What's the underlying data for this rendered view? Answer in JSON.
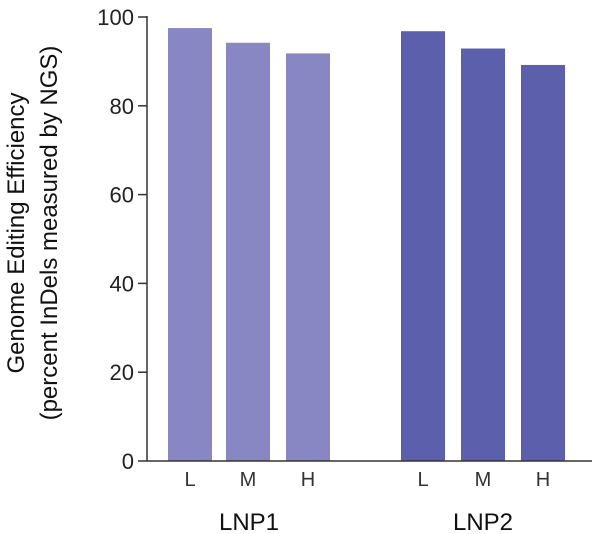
{
  "chart_data": {
    "type": "bar",
    "title": "",
    "ylabel_line1": "Genome Editing Efficiency",
    "ylabel_line2": "(percent InDels measured by NGS)",
    "ylim": [
      0,
      100
    ],
    "yticks": [
      0,
      20,
      40,
      60,
      80,
      100
    ],
    "grid": false,
    "legend": "none",
    "groups": [
      {
        "name": "LNP1",
        "color": "#8886c3",
        "categories": [
          "L",
          "M",
          "H"
        ],
        "values": [
          97.5,
          94.2,
          91.8
        ]
      },
      {
        "name": "LNP2",
        "color": "#5b5fac",
        "categories": [
          "L",
          "M",
          "H"
        ],
        "values": [
          96.8,
          92.9,
          89.2
        ]
      }
    ]
  }
}
